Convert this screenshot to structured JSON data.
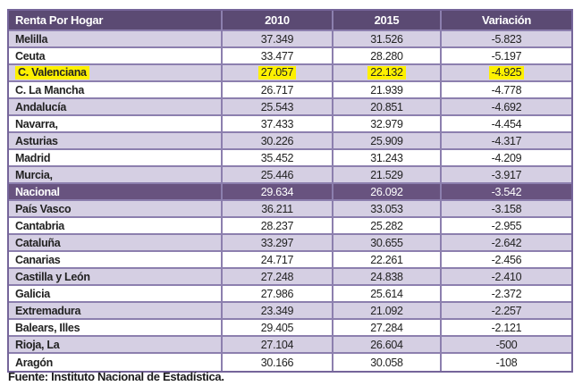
{
  "table": {
    "columns": [
      "Renta Por Hogar",
      "2010",
      "2015",
      "Variación"
    ],
    "rows": [
      {
        "label": "Melilla",
        "y2010": "37.349",
        "y2015": "31.526",
        "variacion": "-5.823",
        "style": "alt"
      },
      {
        "label": "Ceuta",
        "y2010": "33.477",
        "y2015": "28.280",
        "variacion": "-5.197",
        "style": "white"
      },
      {
        "label": "C. Valenciana",
        "y2010": "27.057",
        "y2015": "22.132",
        "variacion": "-4.925",
        "style": "highlight"
      },
      {
        "label": "C. La Mancha",
        "y2010": "26.717",
        "y2015": "21.939",
        "variacion": "-4.778",
        "style": "white"
      },
      {
        "label": "Andalucía",
        "y2010": "25.543",
        "y2015": "20.851",
        "variacion": "-4.692",
        "style": "alt"
      },
      {
        "label": "Navarra,",
        "y2010": "37.433",
        "y2015": "32.979",
        "variacion": "-4.454",
        "style": "white"
      },
      {
        "label": "Asturias",
        "y2010": "30.226",
        "y2015": "25.909",
        "variacion": "-4.317",
        "style": "alt"
      },
      {
        "label": "Madrid",
        "y2010": "35.452",
        "y2015": "31.243",
        "variacion": "-4.209",
        "style": "white"
      },
      {
        "label": "Murcia,",
        "y2010": "25.446",
        "y2015": "21.529",
        "variacion": "-3.917",
        "style": "alt"
      },
      {
        "label": "Nacional",
        "y2010": "29.634",
        "y2015": "26.092",
        "variacion": "-3.542",
        "style": "dark"
      },
      {
        "label": "País Vasco",
        "y2010": "36.211",
        "y2015": "33.053",
        "variacion": "-3.158",
        "style": "alt"
      },
      {
        "label": "Cantabria",
        "y2010": "28.237",
        "y2015": "25.282",
        "variacion": "-2.955",
        "style": "white"
      },
      {
        "label": "Cataluña",
        "y2010": "33.297",
        "y2015": "30.655",
        "variacion": "-2.642",
        "style": "alt"
      },
      {
        "label": "Canarias",
        "y2010": "24.717",
        "y2015": "22.261",
        "variacion": "-2.456",
        "style": "white"
      },
      {
        "label": "Castilla y León",
        "y2010": "27.248",
        "y2015": "24.838",
        "variacion": "-2.410",
        "style": "alt"
      },
      {
        "label": "Galicia",
        "y2010": "27.986",
        "y2015": "25.614",
        "variacion": "-2.372",
        "style": "white"
      },
      {
        "label": "Extremadura",
        "y2010": "23.349",
        "y2015": "21.092",
        "variacion": "-2.257",
        "style": "alt"
      },
      {
        "label": "Balears, Illes",
        "y2010": "29.405",
        "y2015": "27.284",
        "variacion": "-2.121",
        "style": "white"
      },
      {
        "label": "Rioja, La",
        "y2010": "27.104",
        "y2015": "26.604",
        "variacion": "-500",
        "style": "alt"
      },
      {
        "label": "Aragón",
        "y2010": "30.166",
        "y2015": "30.058",
        "variacion": "-108",
        "style": "white"
      }
    ]
  },
  "footer": {
    "source": "Fuente: Instituto Nacional de Estadística."
  },
  "colors": {
    "header_bg": "#5b4a73",
    "nacional_bg": "#68537f",
    "alt_row_bg": "#d5cfe3",
    "border": "#8c7fae",
    "outer_border": "#75659a",
    "highlight": "#fdf000",
    "text": "#222222"
  },
  "chart_data": {
    "type": "table",
    "title": "Renta Por Hogar",
    "columns": [
      "Renta Por Hogar",
      "2010",
      "2015",
      "Variación"
    ],
    "rows": [
      [
        "Melilla",
        37349,
        31526,
        -5823
      ],
      [
        "Ceuta",
        33477,
        28280,
        -5197
      ],
      [
        "C. Valenciana",
        27057,
        22132,
        -4925
      ],
      [
        "C. La Mancha",
        26717,
        21939,
        -4778
      ],
      [
        "Andalucía",
        25543,
        20851,
        -4692
      ],
      [
        "Navarra,",
        37433,
        32979,
        -4454
      ],
      [
        "Asturias",
        30226,
        25909,
        -4317
      ],
      [
        "Madrid",
        35452,
        31243,
        -4209
      ],
      [
        "Murcia,",
        25446,
        21529,
        -3917
      ],
      [
        "Nacional",
        29634,
        26092,
        -3542
      ],
      [
        "País Vasco",
        36211,
        33053,
        -3158
      ],
      [
        "Cantabria",
        28237,
        25282,
        -2955
      ],
      [
        "Cataluña",
        33297,
        30655,
        -2642
      ],
      [
        "Canarias",
        24717,
        22261,
        -2456
      ],
      [
        "Castilla y León",
        27248,
        24838,
        -2410
      ],
      [
        "Galicia",
        27986,
        25614,
        -2372
      ],
      [
        "Extremadura",
        23349,
        21092,
        -2257
      ],
      [
        "Balears, Illes",
        29405,
        27284,
        -2121
      ],
      [
        "Rioja, La",
        27104,
        26604,
        -500
      ],
      [
        "Aragón",
        30166,
        30058,
        -108
      ]
    ],
    "highlighted_row": "C. Valenciana",
    "emphasized_row": "Nacional",
    "note": "Fuente: Instituto Nacional de Estadística."
  }
}
